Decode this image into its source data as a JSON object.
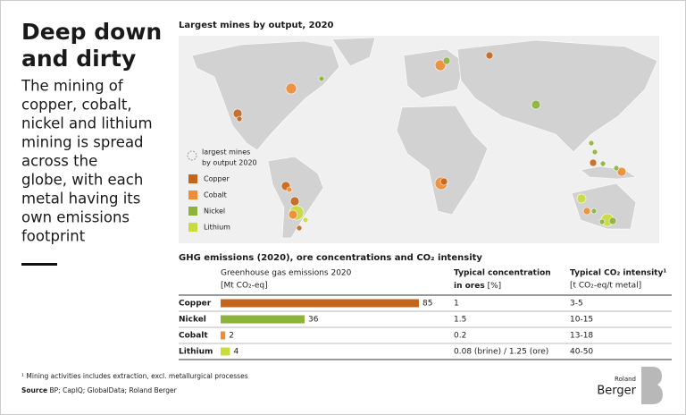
{
  "header": {
    "title": [
      "Deep down",
      "and dirty"
    ],
    "subtitle": [
      "The mining of",
      "copper, cobalt,",
      "nickel and lithium",
      "mining is spread",
      "across the",
      "globe, with each",
      "metal having its",
      "own emissions",
      "footprint"
    ]
  },
  "map": {
    "title": "Largest mines by output, 2020",
    "legend_title": [
      "largest mines",
      "by output 2020"
    ],
    "legend": [
      {
        "label": "Copper",
        "color": "#c4651c"
      },
      {
        "label": "Cobalt",
        "color": "#ee8d35"
      },
      {
        "label": "Nickel",
        "color": "#8cb33a"
      },
      {
        "label": "Lithium",
        "color": "#c9dc3b"
      }
    ]
  },
  "table": {
    "title": "GHG emissions (2020), ore concentrations and CO₂ intensity",
    "headers": [
      {
        "title": "Greenhouse gas emissions 2020",
        "unit": "[Mt CO₂-eq]"
      },
      {
        "title": "Typical concentration",
        "title2": "in ores",
        "unit": "[%]"
      },
      {
        "title": "Typical CO₂ intensity¹",
        "unit": "[t CO₂-eq/t metal]"
      }
    ],
    "rows": [
      {
        "metal": "Copper",
        "emissions": 85,
        "color": "#c4651c",
        "concentration": "1",
        "intensity": "3-5"
      },
      {
        "metal": "Nickel",
        "emissions": 36,
        "color": "#8cb33a",
        "concentration": "1.5",
        "intensity": "10-15"
      },
      {
        "metal": "Cobalt",
        "emissions": 2,
        "color": "#ee8d35",
        "concentration": "0.2",
        "intensity": "13-18"
      },
      {
        "metal": "Lithium",
        "emissions": 4,
        "color": "#c9dc3b",
        "concentration": "0.08 (brine) / 1.25 (ore)",
        "intensity": "40-50"
      }
    ]
  },
  "footnote": "¹ Mining activities includes extraction, excl. metallurgical processes",
  "source_label": "Source",
  "source": "BP; CapIQ; GlobalData; Roland Berger",
  "logo": [
    "Roland",
    "Berger"
  ]
}
